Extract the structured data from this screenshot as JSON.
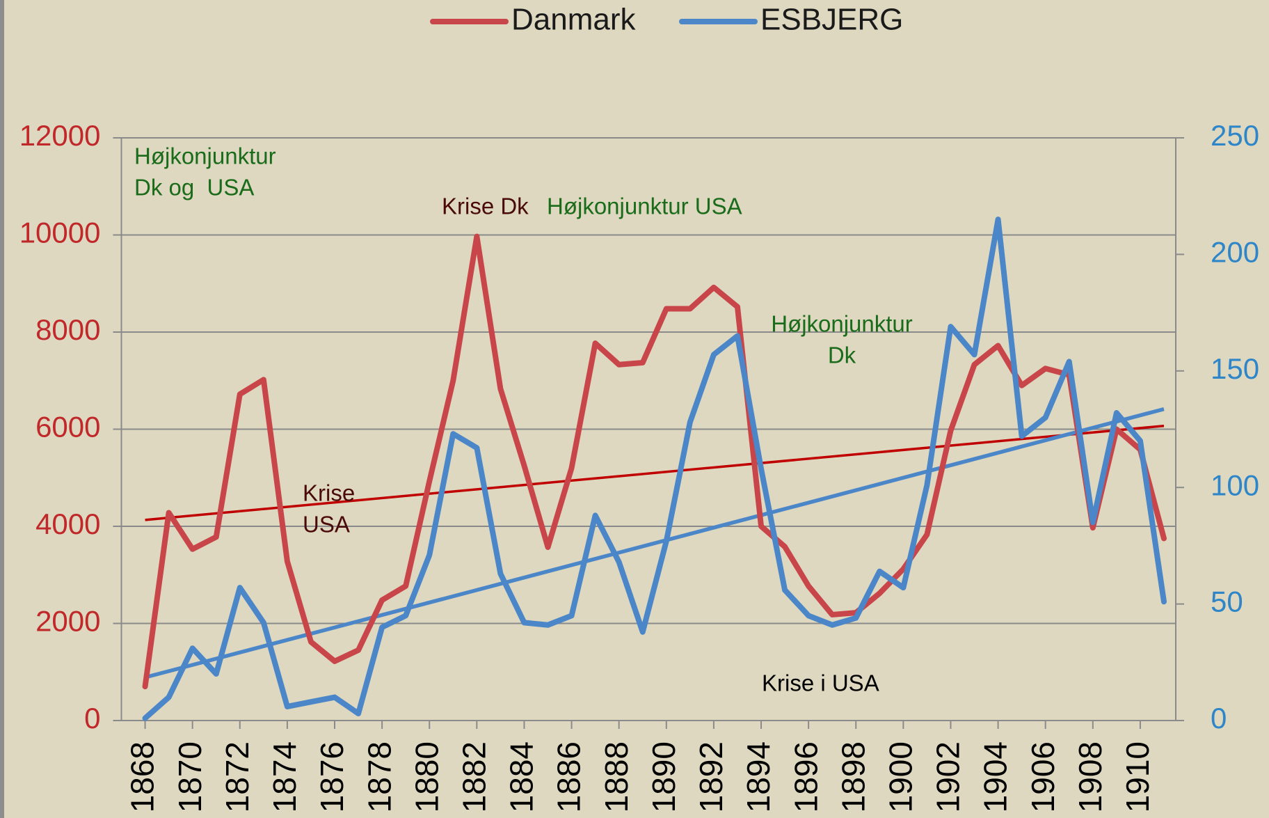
{
  "chart_data": {
    "type": "line",
    "x": [
      1868,
      1869,
      1870,
      1871,
      1872,
      1873,
      1874,
      1875,
      1876,
      1877,
      1878,
      1879,
      1880,
      1881,
      1882,
      1883,
      1884,
      1885,
      1886,
      1887,
      1888,
      1889,
      1890,
      1891,
      1892,
      1893,
      1894,
      1895,
      1896,
      1897,
      1898,
      1899,
      1900,
      1901,
      1902,
      1903,
      1904,
      1905,
      1906,
      1907,
      1908,
      1909,
      1910,
      1911
    ],
    "series": [
      {
        "name": "Danmark",
        "color": "#c8464a",
        "values": [
          700,
          4280,
          3530,
          3780,
          6720,
          7020,
          3280,
          1620,
          1220,
          1450,
          2480,
          2770,
          4930,
          7000,
          9970,
          6830,
          5250,
          3570,
          5200,
          7770,
          7330,
          7370,
          8480,
          8480,
          8920,
          8520,
          4000,
          3580,
          2770,
          2180,
          2220,
          2620,
          3120,
          3830,
          5970,
          7330,
          7720,
          6900,
          7250,
          7120,
          3970,
          6000,
          5580,
          3750
        ]
      },
      {
        "name": "ESBJERG",
        "color": "#4a86c8",
        "axis": "y2",
        "values": [
          1,
          10,
          31,
          20,
          57,
          42,
          6,
          8,
          10,
          3,
          40,
          45,
          71,
          123,
          117,
          63,
          42,
          41,
          45,
          88,
          68,
          38,
          77,
          128,
          157,
          165,
          108,
          56,
          45,
          41,
          44,
          64,
          57,
          101,
          169,
          157,
          215,
          122,
          130,
          154,
          85,
          132,
          120,
          51
        ]
      }
    ],
    "trendline": true,
    "xlim": [
      1867,
      1911.5
    ],
    "xticks": [
      1868,
      1870,
      1872,
      1874,
      1876,
      1878,
      1880,
      1882,
      1884,
      1886,
      1888,
      1890,
      1892,
      1894,
      1896,
      1898,
      1900,
      1902,
      1904,
      1906,
      1908,
      1910
    ],
    "ylim": [
      0,
      12000
    ],
    "yticks": [
      0,
      2000,
      4000,
      6000,
      8000,
      10000,
      12000
    ],
    "y2lim": [
      0,
      250
    ],
    "y2ticks": [
      0,
      50,
      100,
      150,
      200,
      250
    ],
    "grid": true,
    "legend": "top",
    "annotations": [
      {
        "lines": [
          "Højkonjunktur",
          "Dk og  USA"
        ],
        "color": "#1a6b1a"
      },
      {
        "lines": [
          "Krise Dk"
        ],
        "color": "#4a0a0a"
      },
      {
        "lines": [
          "Højkonjunktur USA"
        ],
        "color": "#1a6b1a"
      },
      {
        "lines": [
          "Højkonjunktur",
          "Dk"
        ],
        "color": "#1a6b1a"
      },
      {
        "lines": [
          "Krise",
          "USA"
        ],
        "color": "#4a0a0a"
      },
      {
        "lines": [
          "Krise i USA"
        ],
        "color": "#000000"
      }
    ]
  }
}
